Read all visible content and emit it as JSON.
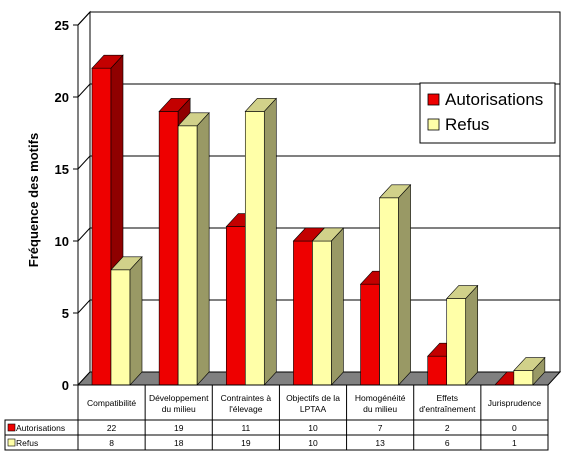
{
  "chart_data": {
    "type": "bar",
    "title": "",
    "xlabel": "",
    "ylabel": "Fréquence des motifs",
    "ylim": [
      0,
      25
    ],
    "yticks": [
      "0",
      "5",
      "10",
      "15",
      "20",
      "25"
    ],
    "grid": true,
    "legend_position": "right",
    "categories": [
      [
        "Compatibilité"
      ],
      [
        "Développement",
        "du milieu"
      ],
      [
        "Contraintes à",
        "l'élevage"
      ],
      [
        "Objectifs de la",
        "LPTAA"
      ],
      [
        "Homogénéité",
        "du milieu"
      ],
      [
        "Effets",
        "d'entraînement"
      ],
      [
        "Jurisprudence"
      ]
    ],
    "series": [
      {
        "name": "Autorisations",
        "color": "#ee0000",
        "values": [
          22,
          19,
          11,
          10,
          7,
          2,
          0
        ],
        "labels": [
          "22",
          "19",
          "11",
          "10",
          "7",
          "2",
          "0"
        ]
      },
      {
        "name": "Refus",
        "color": "#ffffa8",
        "values": [
          8,
          18,
          19,
          10,
          13,
          6,
          1
        ],
        "labels": [
          "8",
          "18",
          "19",
          "10",
          "13",
          "6",
          "1"
        ]
      }
    ]
  }
}
